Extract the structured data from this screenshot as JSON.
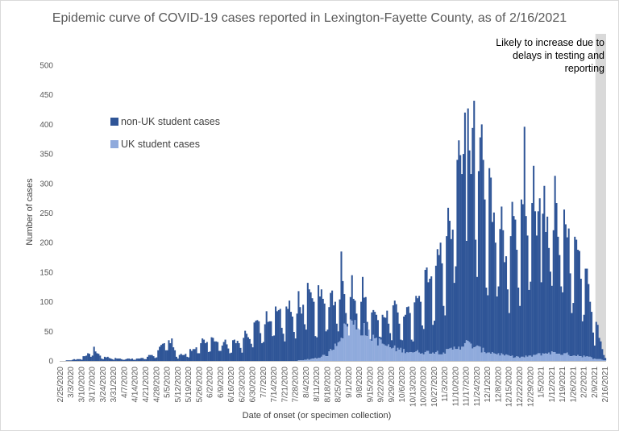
{
  "chart_data": {
    "type": "bar",
    "stacked": true,
    "title": "Epidemic curve of COVID-19 cases reported in Lexington-Fayette County, as of 2/16/2021",
    "xlabel": "Date of onset (or specimen collection)",
    "ylabel": "Number of cases",
    "ylim": [
      0,
      500
    ],
    "yticks": [
      0,
      50,
      100,
      150,
      200,
      250,
      300,
      350,
      400,
      450,
      500
    ],
    "grid": false,
    "legend_position": "left-top",
    "x_range": [
      "2/25/2020",
      "2/16/2021"
    ],
    "x_tick_labels": [
      "2/25/2020",
      "3/3/2020",
      "3/10/2020",
      "3/17/2020",
      "3/24/2020",
      "3/31/2020",
      "4/7/2020",
      "4/14/2020",
      "4/21/2020",
      "4/28/2020",
      "5/5/2020",
      "5/12/2020",
      "5/19/2020",
      "5/26/2020",
      "6/2/2020",
      "6/9/2020",
      "6/16/2020",
      "6/23/2020",
      "6/30/2020",
      "7/7/2020",
      "7/14/2020",
      "7/21/2020",
      "7/28/2020",
      "8/4/2020",
      "8/11/2020",
      "8/18/2020",
      "8/25/2020",
      "9/1/2020",
      "9/8/2020",
      "9/15/2020",
      "9/22/2020",
      "9/29/2020",
      "10/6/2020",
      "10/13/2020",
      "10/20/2020",
      "10/27/2020",
      "11/3/2020",
      "11/10/2020",
      "11/17/2020",
      "11/24/2020",
      "12/1/2020",
      "12/8/2020",
      "12/15/2020",
      "12/22/2020",
      "12/29/2020",
      "1/5/2021",
      "1/12/2021",
      "1/19/2021",
      "1/26/2021",
      "2/2/2021",
      "2/9/2021",
      "2/16/2021"
    ],
    "series": [
      {
        "name": "non-UK student cases",
        "color": "#2f5597",
        "weekly_anchor_values_total": [
          0,
          1,
          4,
          14,
          6,
          4,
          3,
          3,
          6,
          10,
          35,
          8,
          12,
          26,
          30,
          26,
          24,
          32,
          45,
          58,
          70,
          68,
          76,
          88,
          85,
          88,
          100,
          98,
          100,
          72,
          66,
          66,
          70,
          68,
          100,
          130,
          170,
          250,
          330,
          290,
          230,
          195,
          170,
          180,
          210,
          220,
          215,
          180,
          160,
          120,
          60,
          10
        ]
      },
      {
        "name": "UK student cases",
        "color": "#8faadc",
        "weekly_anchor_values": [
          0,
          0,
          0,
          0,
          0,
          0,
          0,
          0,
          0,
          0,
          0,
          0,
          0,
          0,
          0,
          0,
          0,
          0,
          0,
          0,
          0,
          0,
          0,
          2,
          5,
          10,
          35,
          65,
          58,
          45,
          30,
          22,
          18,
          15,
          15,
          15,
          15,
          22,
          30,
          22,
          15,
          12,
          8,
          6,
          8,
          12,
          14,
          12,
          10,
          8,
          4,
          1
        ]
      }
    ],
    "notable_peaks": [
      {
        "date": "3/18/2020",
        "total": 24
      },
      {
        "date": "5/8/2020",
        "total": 38
      },
      {
        "date": "8/5/2020",
        "total": 132
      },
      {
        "date": "8/27/2020",
        "total": 185
      },
      {
        "date": "9/10/2020",
        "total": 142
      },
      {
        "date": "10/21/2020",
        "total": 154
      },
      {
        "date": "11/16/2020",
        "total": 420
      },
      {
        "date": "11/22/2020",
        "total": 440
      },
      {
        "date": "11/27/2020",
        "total": 400
      },
      {
        "date": "12/25/2020",
        "total": 396
      },
      {
        "date": "1/4/2021",
        "total": 275
      }
    ],
    "shaded_region": {
      "from": "2/10/2021",
      "to": "2/16/2021",
      "color": "#d9d9d9",
      "annotation": [
        "Likely to increase due to",
        "delays in testing and",
        "reporting"
      ]
    }
  }
}
